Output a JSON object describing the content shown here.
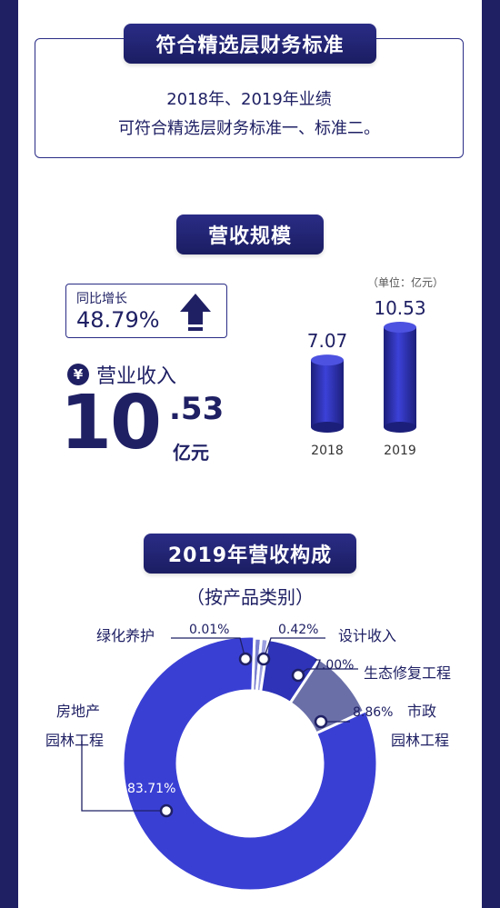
{
  "section1": {
    "title": "符合精选层财务标准",
    "line1": "2018年、2019年业绩",
    "line2": "可符合精选层财务标准一、标准二。"
  },
  "section2": {
    "title": "营收规模",
    "yoy_label": "同比增长",
    "yoy_value": "48.79%",
    "revenue_label": "营业收入",
    "revenue_currency_symbol": "¥",
    "revenue_int": "10",
    "revenue_dec": ".53",
    "revenue_unit": "亿元",
    "unit_note": "（单位：亿元）"
  },
  "section3": {
    "title": "2019年营收构成",
    "subtitle": "（按产品类别）"
  },
  "colors": {
    "navy": "#1f2064",
    "blue": "#3a3fd4",
    "slate": "#6a6fa8",
    "light": "#9da0e0"
  },
  "chart_data": [
    {
      "type": "bar",
      "categories": [
        "2018",
        "2019"
      ],
      "values": [
        7.07,
        10.53
      ],
      "value_labels": [
        "7.07",
        "10.53"
      ],
      "unit": "亿元"
    },
    {
      "type": "pie",
      "style": "donut",
      "slices": [
        {
          "label": "房地产园林工程",
          "label_line1": "房地产",
          "label_line2": "园林工程",
          "value": 83.71,
          "value_label": "83.71%",
          "color": "#3a3fd4"
        },
        {
          "label": "市政园林工程",
          "label_line1": "市政",
          "label_line2": "园林工程",
          "value": 8.86,
          "value_label": "8.86%",
          "color": "#6a6fa8"
        },
        {
          "label": "生态修复工程",
          "value": 7.0,
          "value_label": "7.00%",
          "color": "#2e33b8"
        },
        {
          "label": "设计收入",
          "value": 0.42,
          "value_label": "0.42%",
          "color": "#9da0e0"
        },
        {
          "label": "绿化养护",
          "value": 0.01,
          "value_label": "0.01%",
          "color": "#7a7fd0"
        }
      ]
    }
  ]
}
